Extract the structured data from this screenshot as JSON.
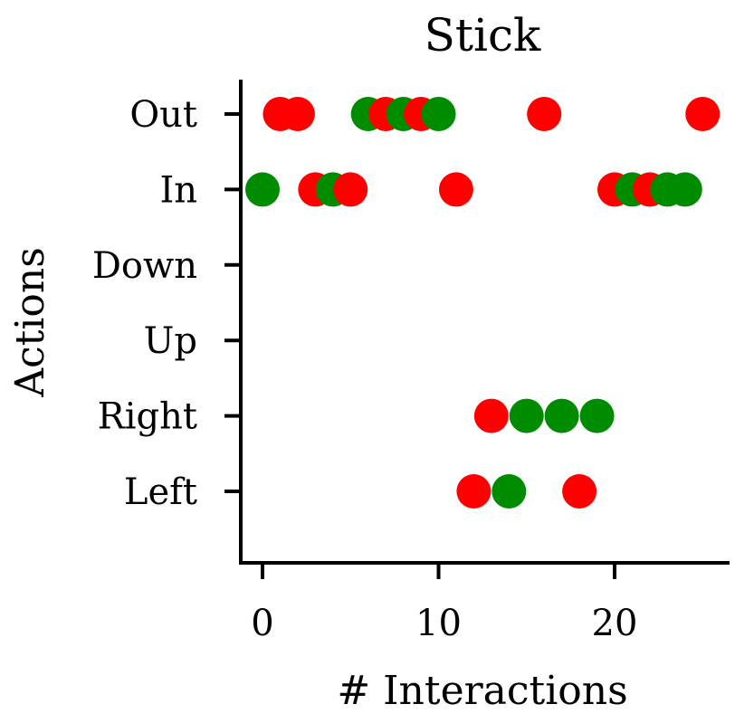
{
  "chart_data": {
    "type": "scatter",
    "title": "Stick",
    "xlabel": "# Interactions",
    "ylabel": "Actions",
    "xlim": [
      -1.2,
      26.5
    ],
    "x_ticks": [
      "0",
      "10",
      "20"
    ],
    "x_tick_values": [
      0,
      10,
      20
    ],
    "categories": [
      "Left",
      "Right",
      "Up",
      "Down",
      "In",
      "Out"
    ],
    "grid": false,
    "legend": "none",
    "colors": {
      "red": "#ff0000",
      "green": "#008c00"
    },
    "points": [
      {
        "x": 0,
        "y": "In",
        "color": "green"
      },
      {
        "x": 1,
        "y": "Out",
        "color": "red"
      },
      {
        "x": 2,
        "y": "Out",
        "color": "red"
      },
      {
        "x": 3,
        "y": "In",
        "color": "red"
      },
      {
        "x": 4,
        "y": "In",
        "color": "green"
      },
      {
        "x": 5,
        "y": "In",
        "color": "red"
      },
      {
        "x": 6,
        "y": "Out",
        "color": "green"
      },
      {
        "x": 7,
        "y": "Out",
        "color": "red"
      },
      {
        "x": 8,
        "y": "Out",
        "color": "green"
      },
      {
        "x": 9,
        "y": "Out",
        "color": "red"
      },
      {
        "x": 10,
        "y": "Out",
        "color": "green"
      },
      {
        "x": 11,
        "y": "In",
        "color": "red"
      },
      {
        "x": 12,
        "y": "Left",
        "color": "red"
      },
      {
        "x": 13,
        "y": "Right",
        "color": "red"
      },
      {
        "x": 14,
        "y": "Left",
        "color": "green"
      },
      {
        "x": 15,
        "y": "Right",
        "color": "green"
      },
      {
        "x": 16,
        "y": "Out",
        "color": "red"
      },
      {
        "x": 17,
        "y": "Right",
        "color": "green"
      },
      {
        "x": 18,
        "y": "Left",
        "color": "red"
      },
      {
        "x": 19,
        "y": "Right",
        "color": "green"
      },
      {
        "x": 20,
        "y": "In",
        "color": "red"
      },
      {
        "x": 21,
        "y": "In",
        "color": "green"
      },
      {
        "x": 22,
        "y": "In",
        "color": "red"
      },
      {
        "x": 23,
        "y": "In",
        "color": "green"
      },
      {
        "x": 24,
        "y": "In",
        "color": "green"
      },
      {
        "x": 25,
        "y": "Out",
        "color": "red"
      }
    ]
  }
}
